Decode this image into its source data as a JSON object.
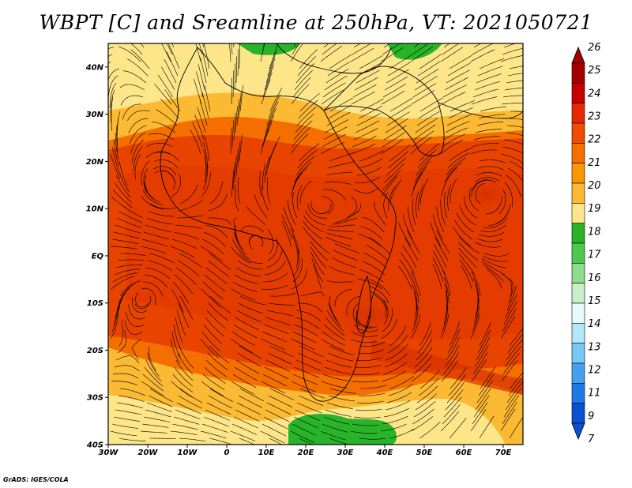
{
  "title": "WBPT [C] and Sreamline at 250hPa, VT: 2021050721",
  "credit": "GrADS: IGES/COLA",
  "map": {
    "lon_range": [
      -30,
      75
    ],
    "lat_range": [
      -40,
      45
    ],
    "lat_labels": [
      "40N",
      "30N",
      "20N",
      "10N",
      "EQ",
      "10S",
      "20S",
      "30S",
      "40S"
    ],
    "lon_labels": [
      "30W",
      "20W",
      "10W",
      "0",
      "10E",
      "20E",
      "30E",
      "40E",
      "50E",
      "60E",
      "70E"
    ]
  },
  "colorbar": {
    "levels": [
      "26",
      "25",
      "24",
      "23",
      "22",
      "21",
      "20",
      "19",
      "18",
      "17",
      "16",
      "15",
      "14",
      "13",
      "12",
      "11",
      "9",
      "7"
    ],
    "colors": [
      "#a50000",
      "#c80000",
      "#e62800",
      "#f04b00",
      "#f56e00",
      "#fa9600",
      "#fcb933",
      "#fde68a",
      "#28b428",
      "#50c850",
      "#8cdc8c",
      "#c8f0c8",
      "#e6fafa",
      "#b4e6fa",
      "#78c8f5",
      "#46a0f0",
      "#1e78e6",
      "#0a50d2"
    ]
  }
}
